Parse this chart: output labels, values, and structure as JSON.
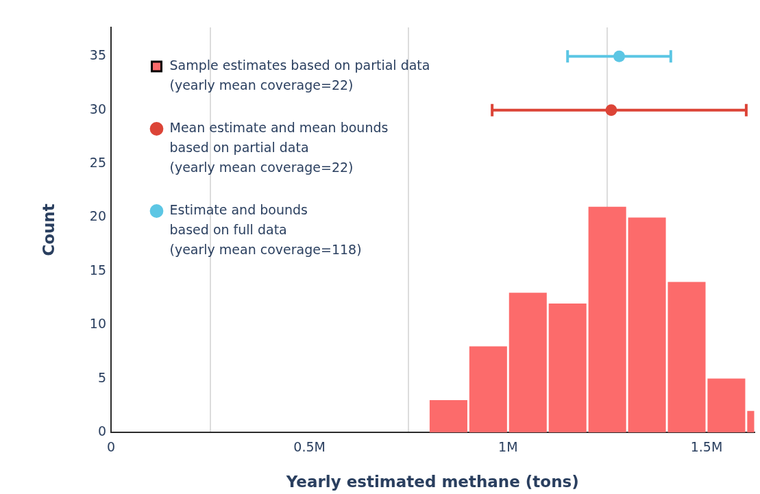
{
  "chart_data": {
    "type": "histogram",
    "xlabel": "Yearly estimated methane (tons)",
    "ylabel": "Count",
    "xlim": [
      0,
      1620000
    ],
    "xticks": [
      0,
      {
        "value": 500000,
        "label": "0.5M"
      },
      {
        "value": 1000000,
        "label": "1M"
      },
      {
        "value": 1500000,
        "label": "1.5M"
      }
    ],
    "ylim": [
      0,
      37.7
    ],
    "yticks": [
      0,
      5,
      10,
      15,
      20,
      25,
      30,
      35
    ],
    "grid": "x",
    "legend": "top left",
    "marker": "circle",
    "series": [
      {
        "name": "Sample estimates based on partial data\n(yearly mean coverage=22)",
        "color": "#fc6b6b",
        "bins": [
          800000,
          900000,
          1000000,
          1100000,
          1200000,
          1300000,
          1400000,
          1500000,
          1600000,
          1700000
        ],
        "values": [
          3,
          8,
          13,
          12,
          21,
          20,
          14,
          5,
          2
        ]
      },
      {
        "type": "scatter",
        "name": "Mean estimate and mean bounds\nbased on partial data\n(yearly mean coverage=22)",
        "color": "#dc4437",
        "x": [
          1260000
        ],
        "values": [
          30
        ],
        "xerrors": [
          [
            960000,
            1600000
          ]
        ]
      },
      {
        "type": "scatter",
        "name": "Estimate and bounds\nbased on full data\n(yearly mean coverage=118)",
        "color": "#5cc6e4",
        "x": [
          1280000
        ],
        "values": [
          35
        ],
        "xerrors": [
          [
            1150000,
            1410000
          ]
        ]
      }
    ]
  }
}
